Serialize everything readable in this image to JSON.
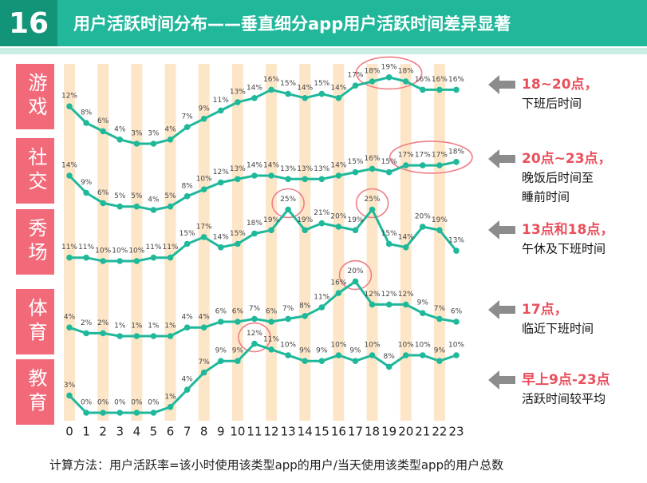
{
  "header": {
    "number": "16",
    "title": "用户活跃时间分布——垂直细分app用户活跃时间差异显著"
  },
  "footer": "计算方法：用户活跃率=该小时使用该类型app的用户/当天使用该类型app的用户总数",
  "chart_data": [
    {
      "type": "line",
      "label": "游戏",
      "color": "#1fb89a",
      "x": [
        0,
        1,
        2,
        3,
        4,
        5,
        6,
        7,
        8,
        9,
        10,
        11,
        12,
        13,
        14,
        15,
        16,
        17,
        18,
        19,
        20,
        21,
        22,
        23
      ],
      "values": [
        12,
        8,
        6,
        4,
        3,
        3,
        4,
        7,
        9,
        11,
        13,
        14,
        16,
        15,
        14,
        15,
        14,
        17,
        18,
        19,
        18,
        16,
        16,
        16
      ],
      "value_labels": [
        "12%",
        "8%",
        "6%",
        "4%",
        "3%",
        "3%",
        "4%",
        "7%",
        "9%",
        "11%",
        "13%",
        "14%",
        "16%",
        "15%",
        "14%",
        "15%",
        "14%",
        "17%",
        "18%",
        "19%",
        "18%",
        "16%",
        "16%",
        "16%"
      ],
      "highlights": [
        [
          18,
          20
        ]
      ],
      "notes": [
        "18~20点，",
        "下班后时间"
      ]
    },
    {
      "type": "line",
      "label": "社交",
      "color": "#1fb89a",
      "x": [
        0,
        1,
        2,
        3,
        4,
        5,
        6,
        7,
        8,
        9,
        10,
        11,
        12,
        13,
        14,
        15,
        16,
        17,
        18,
        19,
        20,
        21,
        22,
        23
      ],
      "values": [
        14,
        9,
        6,
        5,
        5,
        4,
        5,
        8,
        10,
        12,
        13,
        14,
        14,
        13,
        13,
        13,
        14,
        15,
        16,
        15,
        17,
        17,
        17,
        18
      ],
      "value_labels": [
        "14%",
        "9%",
        "6%",
        "5%",
        "5%",
        "4%",
        "5%",
        "8%",
        "10%",
        "12%",
        "13%",
        "14%",
        "14%",
        "13%",
        "13%",
        "13%",
        "14%",
        "15%",
        "16%",
        "15%",
        "17%",
        "17%",
        "17%",
        "18%"
      ],
      "highlights": [
        [
          20,
          23
        ]
      ],
      "notes": [
        "20点~23点，",
        "晚饭后时间至",
        "睡前时间"
      ]
    },
    {
      "type": "line",
      "label": "秀场",
      "color": "#1fb89a",
      "x": [
        0,
        1,
        2,
        3,
        4,
        5,
        6,
        7,
        8,
        9,
        10,
        11,
        12,
        13,
        14,
        15,
        16,
        17,
        18,
        19,
        20,
        21,
        22,
        23
      ],
      "values": [
        11,
        11,
        10,
        10,
        10,
        11,
        11,
        15,
        17,
        14,
        15,
        18,
        19,
        25,
        19,
        21,
        20,
        19,
        25,
        15,
        14,
        20,
        19,
        13
      ],
      "value_labels": [
        "11%",
        "11%",
        "10%",
        "10%",
        "10%",
        "11%",
        "11%",
        "15%",
        "17%",
        "14%",
        "15%",
        "18%",
        "19%",
        "25%",
        "19%",
        "21%",
        "20%",
        "19%",
        "25%",
        "15%",
        "14%",
        "20%",
        "19%",
        "13%"
      ],
      "highlights": [
        [
          13,
          13
        ],
        [
          18,
          18
        ]
      ],
      "notes": [
        "13点和18点，",
        "午休及下班时间"
      ]
    },
    {
      "type": "line",
      "label": "体育",
      "color": "#1fb89a",
      "x": [
        0,
        1,
        2,
        3,
        4,
        5,
        6,
        7,
        8,
        9,
        10,
        11,
        12,
        13,
        14,
        15,
        16,
        17,
        18,
        19,
        20,
        21,
        22,
        23
      ],
      "values": [
        4,
        2,
        2,
        1,
        1,
        1,
        1,
        4,
        4,
        6,
        6,
        7,
        6,
        7,
        8,
        11,
        16,
        20,
        12,
        12,
        12,
        9,
        7,
        6
      ],
      "value_labels": [
        "4%",
        "2%",
        "2%",
        "1%",
        "1%",
        "1%",
        "1%",
        "4%",
        "4%",
        "6%",
        "6%",
        "7%",
        "6%",
        "7%",
        "8%",
        "11%",
        "16%",
        "20%",
        "12%",
        "12%",
        "12%",
        "9%",
        "7%",
        "6%"
      ],
      "highlights": [
        [
          17,
          17
        ]
      ],
      "notes": [
        "17点，",
        "临近下班时间"
      ]
    },
    {
      "type": "line",
      "label": "教育",
      "color": "#1fb89a",
      "x": [
        0,
        1,
        2,
        3,
        4,
        5,
        6,
        7,
        8,
        9,
        10,
        11,
        12,
        13,
        14,
        15,
        16,
        17,
        18,
        19,
        20,
        21,
        22,
        23
      ],
      "values": [
        3,
        0,
        0,
        0,
        0,
        0,
        1,
        4,
        7,
        9,
        9,
        12,
        11,
        10,
        9,
        9,
        10,
        9,
        10,
        8,
        10,
        10,
        9,
        10
      ],
      "value_labels": [
        "3%",
        "0%",
        "0%",
        "0%",
        "0%",
        "0%",
        "1%",
        "4%",
        "7%",
        "9%",
        "9%",
        "12%",
        "11%",
        "10%",
        "9%",
        "9%",
        "10%",
        "9%",
        "10%",
        "8%",
        "10%",
        "10%",
        "9%",
        "10%"
      ],
      "highlights": [
        [
          11,
          11
        ]
      ],
      "notes": [
        "早上9点-23点",
        "活跃时间较平均"
      ]
    }
  ]
}
